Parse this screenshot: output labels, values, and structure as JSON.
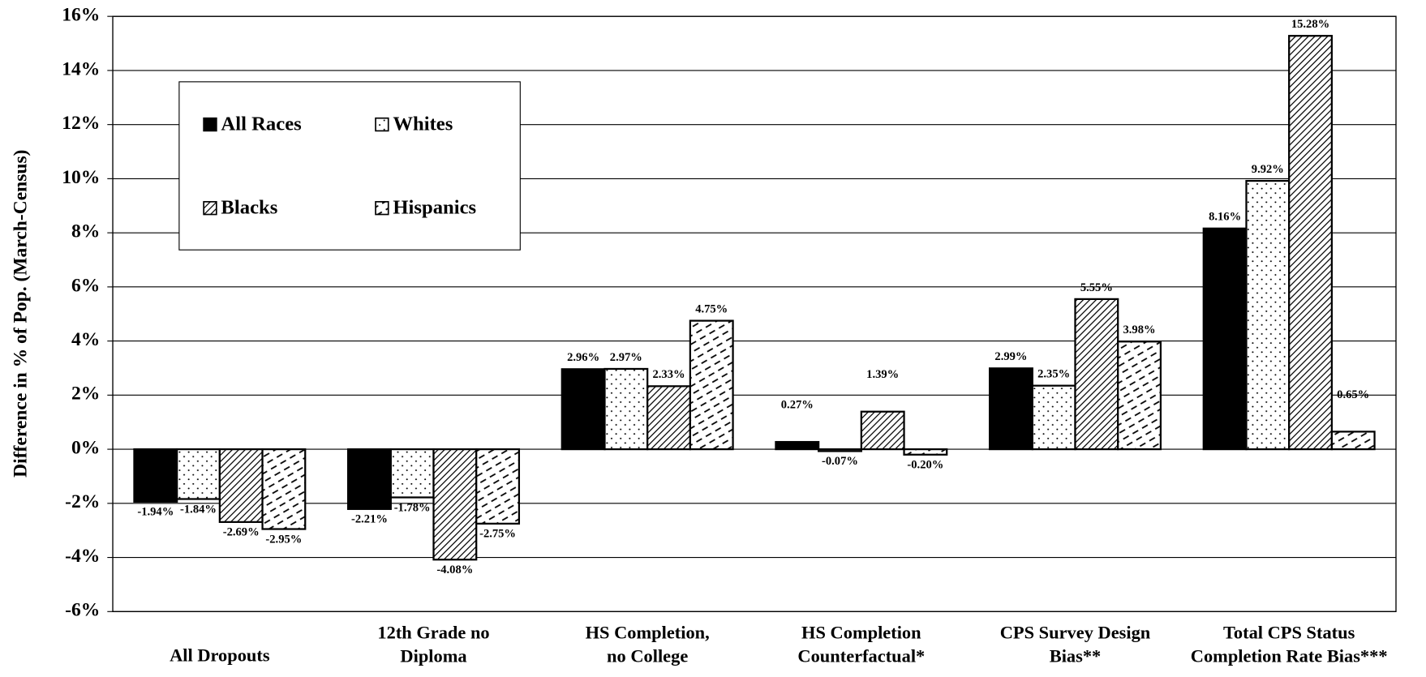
{
  "chart_data": {
    "type": "bar",
    "y_label": "Difference in % of Pop. (March-Census)",
    "categories": [
      "All Dropouts",
      "12th Grade no\nDiploma",
      "HS Completion,\nno College",
      "HS Completion\nCounterfactual*",
      "CPS Survey Design\nBias**",
      "Total CPS Status\nCompletion Rate Bias***"
    ],
    "series": [
      {
        "name": "All Races",
        "color": "#000000",
        "pattern": "solid",
        "values": [
          -1.94,
          -2.21,
          2.96,
          0.27,
          2.99,
          8.16
        ],
        "value_labels": [
          "-1.94%",
          "-2.21%",
          "2.96%",
          "0.27%",
          "2.99%",
          "8.16%"
        ]
      },
      {
        "name": "Whites",
        "color": "#000000",
        "pattern": "dots",
        "values": [
          -1.84,
          -1.78,
          2.97,
          -0.07,
          2.35,
          9.92
        ],
        "value_labels": [
          "-1.84%",
          "-1.78%",
          "2.97%",
          "-0.07%",
          "2.35%",
          "9.92%"
        ]
      },
      {
        "name": "Blacks",
        "color": "#000000",
        "pattern": "diagonal",
        "values": [
          -2.69,
          -4.08,
          2.33,
          1.39,
          5.55,
          15.28
        ],
        "value_labels": [
          "-2.69%",
          "-4.08%",
          "2.33%",
          "1.39%",
          "5.55%",
          "15.28%"
        ]
      },
      {
        "name": "Hispanics",
        "color": "#000000",
        "pattern": "dashes",
        "values": [
          -2.95,
          -2.75,
          4.75,
          -0.2,
          3.98,
          0.65
        ],
        "value_labels": [
          "-2.95%",
          "-2.75%",
          "4.75%",
          "-0.20%",
          "3.98%",
          "0.65%"
        ]
      }
    ],
    "ylim": [
      -6,
      16
    ],
    "yticks": [
      {
        "value": -6,
        "label": "-6%"
      },
      {
        "value": -4,
        "label": "-4%"
      },
      {
        "value": -2,
        "label": "-2%"
      },
      {
        "value": 0,
        "label": "0%"
      },
      {
        "value": 2,
        "label": "2%"
      },
      {
        "value": 4,
        "label": "4%"
      },
      {
        "value": 6,
        "label": "6%"
      },
      {
        "value": 8,
        "label": "8%"
      },
      {
        "value": 10,
        "label": "10%"
      },
      {
        "value": 12,
        "label": "12%"
      },
      {
        "value": 14,
        "label": "14%"
      },
      {
        "value": 16,
        "label": "16%"
      }
    ],
    "grid": true,
    "legend": "upper-left"
  }
}
